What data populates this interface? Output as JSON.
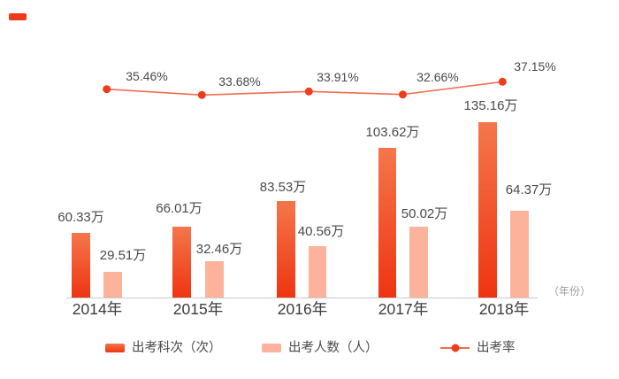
{
  "chart": {
    "colors": {
      "accent_dash": "#F0391B",
      "bar_dark_top": "#F5764B",
      "bar_dark_bottom": "#EE3511",
      "bar_light": "#FDB29B",
      "line": "#F26C50",
      "dot": "#F03C1A",
      "label_text": "#4A4A4A",
      "axis": "#C8C8C8",
      "axis_unit_text": "#9B9B9B"
    }
  },
  "chart_data": {
    "type": "combo-bar-line",
    "title": "",
    "categories": [
      "2014年",
      "2015年",
      "2016年",
      "2017年",
      "2018年"
    ],
    "series": [
      {
        "name": "出考科次（次）",
        "type": "bar",
        "unit": "万",
        "values": [
          60.33,
          66.01,
          83.53,
          103.62,
          135.16
        ],
        "labels": [
          "60.33万",
          "66.01万",
          "83.53万",
          "103.62万",
          "135.16万"
        ]
      },
      {
        "name": "出考人数（人）",
        "type": "bar",
        "unit": "万",
        "values": [
          29.51,
          32.46,
          40.56,
          50.02,
          64.37
        ],
        "labels": [
          "29.51万",
          "32.46万",
          "40.56万",
          "50.02万",
          "64.37万"
        ]
      },
      {
        "name": "出考率",
        "type": "line",
        "unit": "%",
        "values": [
          35.46,
          33.68,
          33.91,
          32.66,
          37.15
        ],
        "labels": [
          "35.46%",
          "33.68%",
          "33.91%",
          "32.66%",
          "37.15%"
        ]
      }
    ],
    "xlabel": "（年份）",
    "ylabel": "",
    "grid": false,
    "legend_position": "bottom"
  }
}
